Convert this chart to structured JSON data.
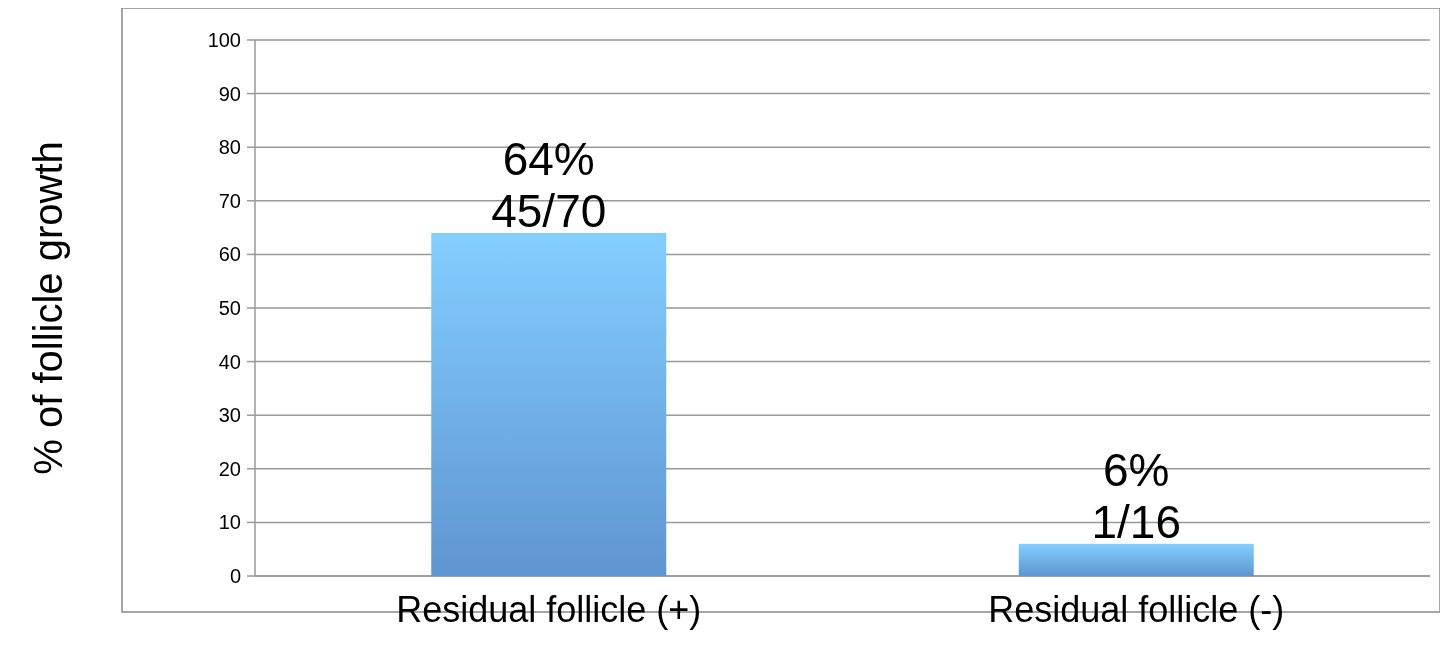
{
  "chart_data": {
    "type": "bar",
    "ylabel": "% of follicle growth",
    "categories": [
      "Residual follicle (+)",
      "Residual follicle (-)"
    ],
    "values": [
      64,
      6
    ],
    "value_labels": [
      "64%\n45/70",
      "6%\n1/16"
    ],
    "color": "#6aa6e8",
    "ylim": [
      0,
      100
    ],
    "yticks": [
      0,
      10,
      20,
      30,
      40,
      50,
      60,
      70,
      80,
      90,
      100
    ],
    "grid": "y"
  }
}
